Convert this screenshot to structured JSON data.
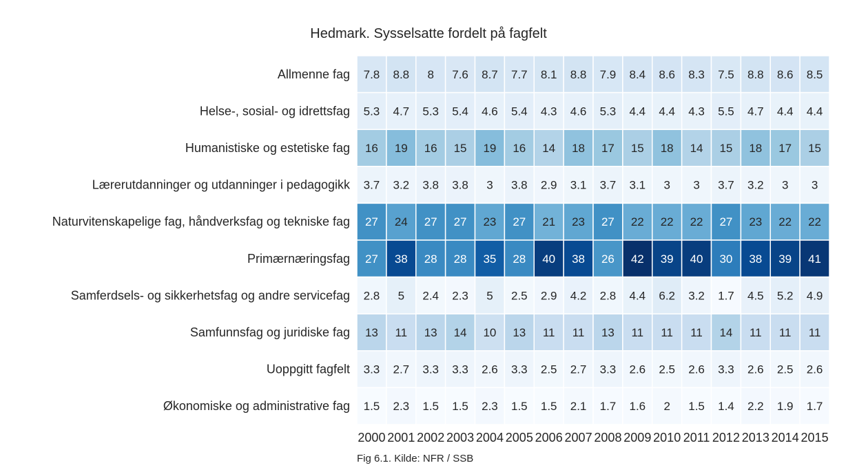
{
  "chart_data": {
    "type": "heatmap",
    "title": "Hedmark. Sysselsatte fordelt på fagfelt",
    "caption": "Fig 6.1. Kilde: NFR / SSB",
    "colormap": "Blues",
    "color_range": [
      1.4,
      42
    ],
    "x": [
      "2000",
      "2001",
      "2002",
      "2003",
      "2004",
      "2005",
      "2006",
      "2007",
      "2008",
      "2009",
      "2010",
      "2011",
      "2012",
      "2013",
      "2014",
      "2015"
    ],
    "rows": [
      {
        "label": "Allmenne fag",
        "values": [
          "7.8",
          "8.8",
          "8",
          "7.6",
          "8.7",
          "7.7",
          "8.1",
          "8.8",
          "7.9",
          "8.4",
          "8.6",
          "8.3",
          "7.5",
          "8.8",
          "8.6",
          "8.5"
        ]
      },
      {
        "label": "Helse-, sosial- og idrettsfag",
        "values": [
          "5.3",
          "4.7",
          "5.3",
          "5.4",
          "4.6",
          "5.4",
          "4.3",
          "4.6",
          "5.3",
          "4.4",
          "4.4",
          "4.3",
          "5.5",
          "4.7",
          "4.4",
          "4.4"
        ]
      },
      {
        "label": "Humanistiske og estetiske fag",
        "values": [
          "16",
          "19",
          "16",
          "15",
          "19",
          "16",
          "14",
          "18",
          "17",
          "15",
          "18",
          "14",
          "15",
          "18",
          "17",
          "15"
        ]
      },
      {
        "label": "Lærerutdanninger og utdanninger i pedagogikk",
        "values": [
          "3.7",
          "3.2",
          "3.8",
          "3.8",
          "3",
          "3.8",
          "2.9",
          "3.1",
          "3.7",
          "3.1",
          "3",
          "3",
          "3.7",
          "3.2",
          "3",
          "3"
        ]
      },
      {
        "label": "Naturvitenskapelige fag, håndverksfag og tekniske fag",
        "values": [
          "27",
          "24",
          "27",
          "27",
          "23",
          "27",
          "21",
          "23",
          "27",
          "22",
          "22",
          "22",
          "27",
          "23",
          "22",
          "22"
        ]
      },
      {
        "label": "Primærnæringsfag",
        "values": [
          "27",
          "38",
          "28",
          "28",
          "35",
          "28",
          "40",
          "38",
          "26",
          "42",
          "39",
          "40",
          "30",
          "38",
          "39",
          "41"
        ]
      },
      {
        "label": "Samferdsels- og sikkerhetsfag og andre servicefag",
        "values": [
          "2.8",
          "5",
          "2.4",
          "2.3",
          "5",
          "2.5",
          "2.9",
          "4.2",
          "2.8",
          "4.4",
          "6.2",
          "3.2",
          "1.7",
          "4.5",
          "5.2",
          "4.9"
        ]
      },
      {
        "label": "Samfunnsfag og juridiske fag",
        "values": [
          "13",
          "11",
          "13",
          "14",
          "10",
          "13",
          "11",
          "11",
          "13",
          "11",
          "11",
          "11",
          "14",
          "11",
          "11",
          "11"
        ]
      },
      {
        "label": "Uoppgitt fagfelt",
        "values": [
          "3.3",
          "2.7",
          "3.3",
          "3.3",
          "2.6",
          "3.3",
          "2.5",
          "2.7",
          "3.3",
          "2.6",
          "2.5",
          "2.6",
          "3.3",
          "2.6",
          "2.5",
          "2.6"
        ]
      },
      {
        "label": "Økonomiske og administrative fag",
        "values": [
          "1.5",
          "2.3",
          "1.5",
          "1.5",
          "2.3",
          "1.5",
          "1.5",
          "2.1",
          "1.7",
          "1.6",
          "2",
          "1.5",
          "1.4",
          "2.2",
          "1.9",
          "1.7"
        ]
      }
    ]
  }
}
